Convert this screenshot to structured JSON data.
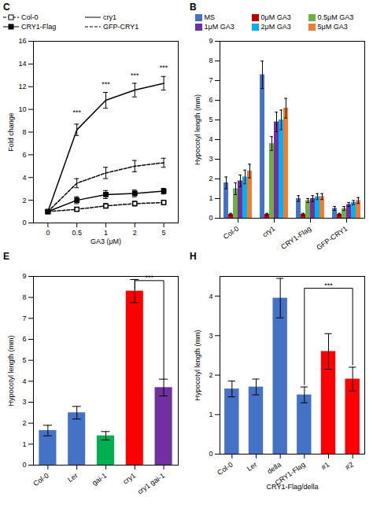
{
  "chart_data": [
    {
      "type": "line",
      "title": "C",
      "categories": [
        "0",
        "0.5",
        "1",
        "2",
        "5"
      ],
      "xlabel": "GA3 (μM)",
      "ylabel": "Fold change",
      "ylim": [
        0,
        16
      ],
      "yticks": [
        0,
        2,
        4,
        6,
        8,
        10,
        12,
        14,
        16
      ],
      "grid": false,
      "legend": "upper left",
      "series": [
        {
          "name": "Col-0",
          "color": "black",
          "marker": "open_square",
          "line_style": "dashed",
          "values": [
            1.0,
            1.2,
            1.5,
            1.7,
            1.8
          ],
          "errors": [
            0.1,
            0.15,
            0.2,
            0.2,
            0.2
          ]
        },
        {
          "name": "cry1",
          "color": "black",
          "marker": "none",
          "line_style": "solid",
          "values": [
            1.0,
            8.2,
            10.8,
            11.7,
            12.3
          ],
          "errors": [
            0.1,
            0.5,
            0.7,
            0.6,
            0.6
          ]
        },
        {
          "name": "CRY1-Flag",
          "color": "black",
          "marker": "square",
          "line_style": "solid",
          "values": [
            1.0,
            2.0,
            2.5,
            2.6,
            2.8
          ],
          "errors": [
            0.1,
            0.3,
            0.35,
            0.3,
            0.25
          ]
        },
        {
          "name": "GFP-CRY1",
          "color": "black",
          "marker": "none",
          "line_style": "dashed",
          "values": [
            1.0,
            3.5,
            4.4,
            5.0,
            5.3
          ],
          "errors": [
            0.1,
            0.4,
            0.5,
            0.5,
            0.4
          ]
        }
      ],
      "annotations": [
        {
          "text": "***",
          "x": "0.5",
          "y": 9.5
        },
        {
          "text": "***",
          "x": "1",
          "y": 12.0
        },
        {
          "text": "***",
          "x": "2",
          "y": 12.8
        },
        {
          "text": "***",
          "x": "5",
          "y": 13.5
        }
      ]
    },
    {
      "type": "bar",
      "title": "B",
      "categories": [
        "Col-0",
        "cry1",
        "CRY1-Flag",
        "GFP-CRY1"
      ],
      "ylabel": "Hypocotyl length (mm)",
      "ylim": [
        0,
        9
      ],
      "yticks": [
        0,
        1,
        2,
        3,
        4,
        5,
        6,
        7,
        8,
        9
      ],
      "grid": false,
      "legend": "upper center",
      "series": [
        {
          "name": "MS",
          "color": "#4472C4",
          "values": [
            1.8,
            7.3,
            1.0,
            0.5
          ],
          "errors": [
            0.3,
            0.7,
            0.15,
            0.1
          ]
        },
        {
          "name": "0μM GA3",
          "color": "#C00000",
          "values": [
            0.2,
            0.2,
            0.2,
            0.2
          ],
          "errors": [
            0.05,
            0.05,
            0.05,
            0.05
          ]
        },
        {
          "name": "0.5μM GA3",
          "color": "#70AD47",
          "values": [
            1.5,
            3.8,
            0.9,
            0.5
          ],
          "errors": [
            0.3,
            0.35,
            0.1,
            0.1
          ]
        },
        {
          "name": "1μM GA3",
          "color": "#7030A0",
          "values": [
            1.9,
            4.9,
            1.0,
            0.7
          ],
          "errors": [
            0.3,
            0.5,
            0.15,
            0.1
          ]
        },
        {
          "name": "2μM GA3",
          "color": "#00B0F0",
          "values": [
            2.1,
            5.0,
            1.1,
            0.8
          ],
          "errors": [
            0.35,
            0.5,
            0.15,
            0.1
          ]
        },
        {
          "name": "5μM GA3",
          "color": "#ED7D31",
          "values": [
            2.4,
            5.6,
            1.1,
            0.9
          ],
          "errors": [
            0.35,
            0.5,
            0.15,
            0.15
          ]
        }
      ]
    },
    {
      "type": "bar",
      "title": "E",
      "categories": [
        "Col-0",
        "Ler",
        "gai-1",
        "cry1",
        "cry1 gai-1"
      ],
      "values": [
        1.65,
        2.5,
        1.4,
        8.3,
        3.7
      ],
      "errors": [
        0.25,
        0.3,
        0.2,
        0.55,
        0.4
      ],
      "colors": [
        "#4472C4",
        "#4472C4",
        "#00B050",
        "#FF0000",
        "#7030A0"
      ],
      "ylabel": "Hypocotyl length (mm)",
      "ylim": [
        0,
        9
      ],
      "yticks": [
        0,
        1,
        2,
        3,
        4,
        5,
        6,
        7,
        8,
        9
      ],
      "grid": false,
      "annotations": [
        {
          "text": "***",
          "x1": "cry1",
          "x2": "cry1 gai-1",
          "y": 8.8,
          "y1": 8.4,
          "y2": 4.1
        }
      ]
    },
    {
      "type": "bar",
      "title": "H",
      "categories": [
        "Col-0",
        "Ler",
        "della",
        "CRY1-Flag",
        "#1",
        "#2"
      ],
      "values": [
        1.65,
        1.7,
        3.95,
        1.5,
        2.6,
        1.9
      ],
      "errors": [
        0.2,
        0.2,
        0.5,
        0.2,
        0.45,
        0.3
      ],
      "colors": [
        "#4472C4",
        "#4472C4",
        "#4472C4",
        "#4472C4",
        "#FF0000",
        "#FF0000"
      ],
      "xlabel": "CRY1-Flag/della",
      "ylabel": "Hypocotyl length (mm)",
      "ylim": [
        0,
        4.5
      ],
      "yticks": [
        0,
        1,
        2,
        3,
        4
      ],
      "grid": false,
      "annotations": [
        {
          "text": "***",
          "x1": "CRY1-Flag",
          "x2": "#2",
          "y": 4.2,
          "y1": 1.75,
          "y2": 2.25
        }
      ]
    }
  ]
}
